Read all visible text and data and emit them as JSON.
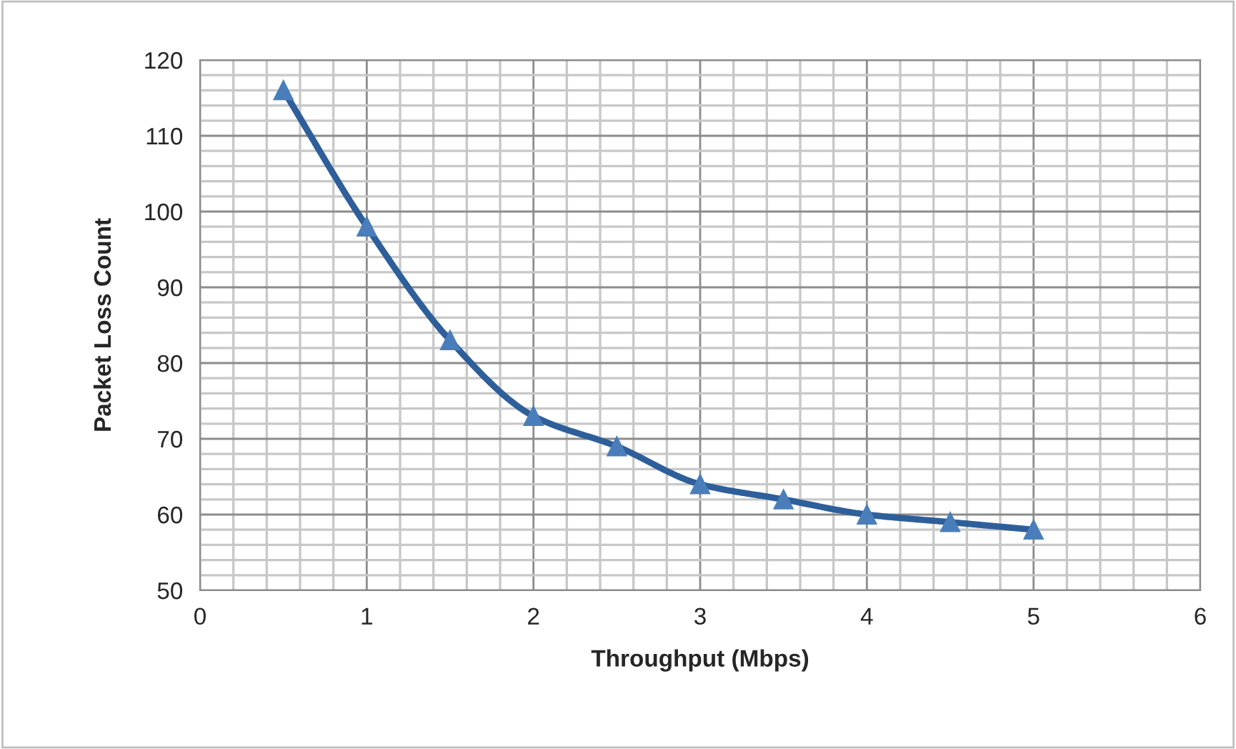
{
  "chart_data": {
    "type": "line",
    "xlabel": "Throughput (Mbps)",
    "ylabel": "Packet Loss Count",
    "x": [
      0.5,
      1,
      1.5,
      2,
      2.5,
      3,
      3.5,
      4,
      4.5,
      5
    ],
    "series": [
      {
        "color": "#2e5f9a",
        "values": [
          116,
          98,
          83,
          73,
          69,
          64,
          62,
          60,
          59,
          58
        ]
      }
    ],
    "xlim": [
      0,
      6
    ],
    "xticks": [
      0,
      1,
      2,
      3,
      4,
      5,
      6
    ],
    "ylim": [
      50,
      120
    ],
    "yticks": [
      50,
      60,
      70,
      80,
      90,
      100,
      110,
      120
    ],
    "grid": true,
    "marker": "triangle",
    "line_style": "solid"
  }
}
